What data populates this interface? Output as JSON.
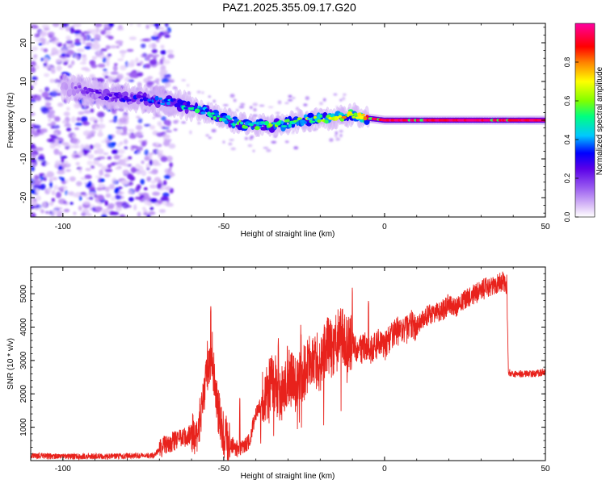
{
  "figure": {
    "title": "PAZ1.2025.355.09.17.G20"
  },
  "chart_data": [
    {
      "type": "heatmap",
      "title": "PAZ1.2025.355.09.17.G20",
      "xlabel": "Height of straight line (km)",
      "ylabel": "Frequency (Hz)",
      "xlim": [
        -110,
        50
      ],
      "ylim": [
        -25,
        25
      ],
      "xticks": [
        -100,
        -50,
        0,
        50
      ],
      "yticks": [
        -20,
        -10,
        0,
        10,
        20
      ],
      "colorbar": {
        "label": "Normalized spectral amplitude",
        "range": [
          0,
          1
        ],
        "ticks": [
          "0.0",
          "0.2",
          "0.4",
          "0.6",
          "0.8"
        ],
        "colors": [
          "#ffffff",
          "#e0c8f8",
          "#9a5cf0",
          "#5a00e8",
          "#0000ff",
          "#00c8ff",
          "#00ff80",
          "#80ff00",
          "#ffff00",
          "#ff8000",
          "#ff0000",
          "#ff00a0"
        ]
      },
      "ridge": {
        "description_points_x": [
          -95,
          -85,
          -75,
          -65,
          -55,
          -45,
          -35,
          -25,
          -15,
          -10,
          -5,
          0,
          10,
          20,
          30,
          40,
          50
        ],
        "frequency_hz": [
          8,
          6,
          5.5,
          4.5,
          2,
          -1,
          -1.5,
          0,
          0.5,
          1.5,
          0.5,
          0,
          0,
          0,
          0,
          0,
          0
        ],
        "amplitude": [
          0.15,
          0.25,
          0.3,
          0.4,
          0.45,
          0.5,
          0.5,
          0.55,
          0.6,
          0.7,
          0.75,
          0.95,
          0.95,
          0.95,
          0.95,
          0.95,
          0.95
        ]
      },
      "noise_region_x": [
        -110,
        -72
      ]
    },
    {
      "type": "line",
      "xlabel": "Height of straight line (km)",
      "ylabel": "SNR (10 * v/v)",
      "xlim": [
        -110,
        50
      ],
      "ylim": [
        0,
        5800
      ],
      "xticks": [
        -100,
        -50,
        0,
        50
      ],
      "yticks": [
        1000,
        2000,
        3000,
        4000,
        5000
      ],
      "line_color": "#e8221c",
      "series": [
        {
          "name": "SNR",
          "x": [
            -110,
            -100,
            -90,
            -80,
            -72,
            -68,
            -62,
            -58,
            -56,
            -54,
            -53,
            -52,
            -50,
            -48,
            -45,
            -42,
            -40,
            -38,
            -35,
            -32,
            -30,
            -28,
            -26,
            -24,
            -22,
            -20,
            -18,
            -16,
            -14,
            -12,
            -10,
            -8,
            -6,
            -4,
            -2,
            0,
            2,
            4,
            6,
            8,
            10,
            12,
            15,
            18,
            20,
            22,
            25,
            28,
            30,
            32,
            34,
            36,
            37,
            38,
            38.5,
            40,
            45,
            50
          ],
          "y": [
            150,
            120,
            130,
            140,
            150,
            500,
            700,
            900,
            2000,
            3200,
            2600,
            1600,
            800,
            500,
            300,
            600,
            1400,
            1800,
            2400,
            2000,
            2600,
            2200,
            2500,
            2800,
            3100,
            2900,
            3500,
            3300,
            3800,
            3500,
            3600,
            3300,
            3400,
            3300,
            3500,
            3400,
            3700,
            3900,
            3800,
            4100,
            4000,
            4300,
            4400,
            4500,
            4700,
            4600,
            4800,
            5000,
            5100,
            5200,
            5300,
            5350,
            5400,
            5250,
            2650,
            2600,
            2600,
            2650
          ]
        }
      ],
      "annotations": {
        "noise_spikes_x": [
          -54,
          -45,
          -33,
          -26,
          -10,
          -5
        ]
      }
    }
  ]
}
